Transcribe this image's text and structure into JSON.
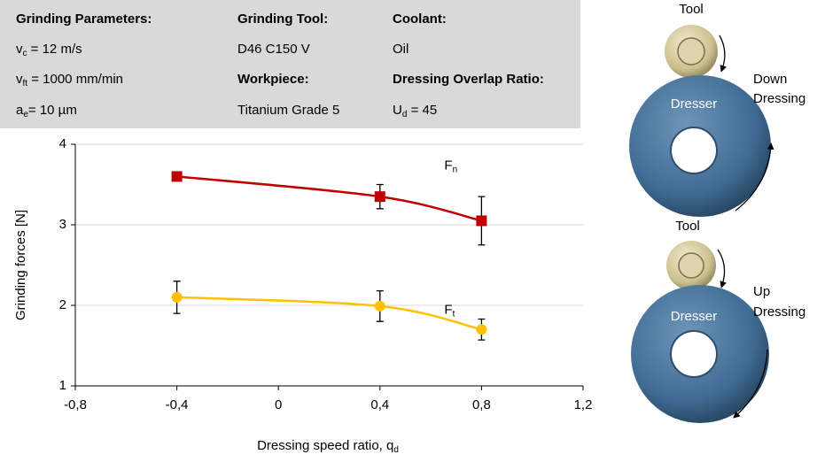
{
  "table": {
    "rows": [
      [
        "Grinding Parameters:",
        "Grinding Tool:",
        "Coolant:"
      ],
      [
        {
          "symbol": "v",
          "sub": "c",
          "text": " = 12 m/s"
        },
        "D46 C150 V",
        "Oil"
      ],
      [
        {
          "symbol": "v",
          "sub": "ft",
          "text": " = 1000 mm/min"
        },
        "Workpiece:",
        "Dressing Overlap Ratio:"
      ],
      [
        {
          "symbol": "a",
          "sub": "e",
          "text": "= 10 µm"
        },
        "Titanium Grade 5",
        {
          "symbol": " U",
          "sub": "d",
          "text": " = 45"
        }
      ]
    ]
  },
  "chart_data": {
    "type": "line",
    "x_label": {
      "text": "Dressing speed ratio, q",
      "sub": "d"
    },
    "y_label": "Grinding forces [N]",
    "x": [
      -0.4,
      0.4,
      0.8
    ],
    "series": [
      {
        "name": {
          "text": "F",
          "sub": "n"
        },
        "color": "#c00000",
        "marker": "square",
        "values": [
          3.6,
          3.35,
          3.05
        ],
        "errors": [
          0.05,
          0.15,
          0.3
        ]
      },
      {
        "name": {
          "text": "F",
          "sub": "t"
        },
        "color": "#ffc000",
        "marker": "circle",
        "values": [
          2.1,
          1.99,
          1.7
        ],
        "errors": [
          0.2,
          0.19,
          0.13
        ]
      }
    ],
    "xlim": [
      -0.8,
      1.2
    ],
    "xticks": [
      {
        "value": -0.8,
        "label": "-0,8"
      },
      {
        "value": -0.4,
        "label": "-0,4"
      },
      0,
      {
        "value": 0.4,
        "label": "0,4"
      },
      {
        "value": 0.8,
        "label": "0,8"
      },
      {
        "value": 1.2,
        "label": "1,2"
      }
    ],
    "ylim": [
      1,
      4
    ],
    "yticks": [
      1,
      2,
      3,
      4
    ],
    "grid": true
  },
  "diagram": {
    "down": {
      "tool": "Tool",
      "dresser": "Dresser",
      "mode": [
        "Down",
        "Dressing"
      ]
    },
    "up": {
      "tool": "Tool",
      "dresser": "Dresser",
      "mode": [
        "Up",
        "Dressing"
      ]
    }
  }
}
